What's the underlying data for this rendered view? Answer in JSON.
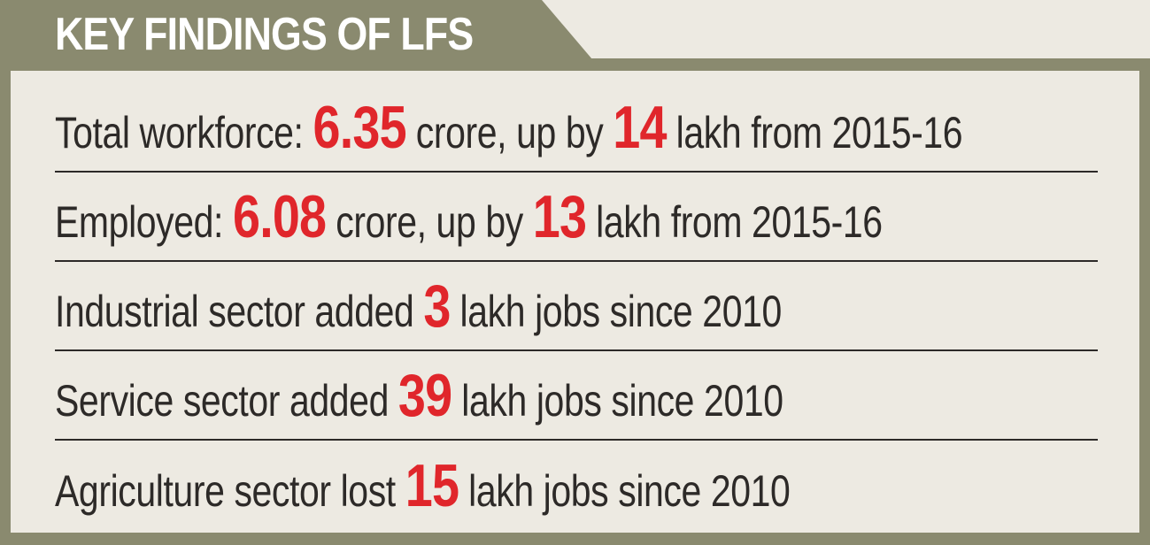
{
  "header": {
    "title": "KEY FINDINGS OF LFS"
  },
  "colors": {
    "accent": "#8a8a6f",
    "background": "#edeae2",
    "text": "#2d2a28",
    "highlight": "#e0262b"
  },
  "findings": [
    {
      "before": "Total workforce: ",
      "value1": "6.35",
      "middle": " crore, up by ",
      "value2": "14",
      "after": " lakh from 2015-16"
    },
    {
      "before": "Employed: ",
      "value1": "6.08",
      "middle": " crore, up by ",
      "value2": "13",
      "after": " lakh from 2015-16"
    },
    {
      "before": "Industrial sector added ",
      "value1": "3",
      "after": " lakh jobs since 2010"
    },
    {
      "before": "Service sector added ",
      "value1": "39",
      "after": " lakh jobs since 2010"
    },
    {
      "before": "Agriculture sector lost ",
      "value1": "15",
      "after": " lakh jobs since 2010"
    }
  ]
}
